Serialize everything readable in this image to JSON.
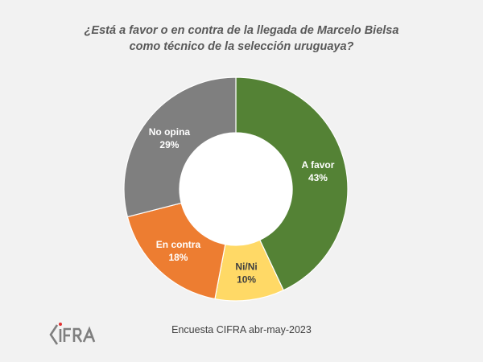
{
  "chart_data": {
    "type": "pie",
    "variant": "donut",
    "title_lines": [
      "¿Está a favor o en contra de la llegada de Marcelo Bielsa",
      "como técnico de la selección uruguaya?"
    ],
    "slices": [
      {
        "label": "A favor",
        "value": 43,
        "display": "43%",
        "color": "#548235",
        "text_color": "#ffffff"
      },
      {
        "label": "Ni/Ni",
        "value": 10,
        "display": "10%",
        "color": "#ffd966",
        "text_color": "#404040"
      },
      {
        "label": "En contra",
        "value": 18,
        "display": "18%",
        "color": "#ed7d31",
        "text_color": "#ffffff"
      },
      {
        "label": "No opina",
        "value": 29,
        "display": "29%",
        "color": "#7f7f7f",
        "text_color": "#ffffff"
      }
    ],
    "start_angle_deg": 0,
    "direction": "clockwise",
    "legend": "none"
  },
  "footer": {
    "source": "Encuesta CIFRA abr-may-2023"
  },
  "logo": {
    "text": "CIFRA",
    "color": "#7f7f7f",
    "dot_color": "#e03030"
  }
}
